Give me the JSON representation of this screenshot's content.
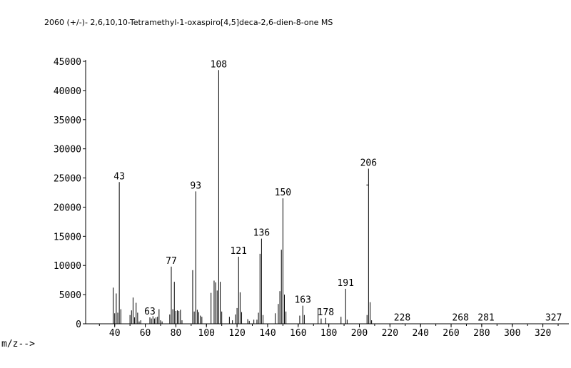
{
  "header": {
    "title": "2060 (+/-)- 2,6,10,10-Tetramethyl-1-oxaspiro[4,5]deca-2,6-dien-8-one   MS"
  },
  "chart_data": {
    "type": "bar",
    "title": "2060 (+/-)- 2,6,10,10-Tetramethyl-1-oxaspiro[4,5]deca-2,6-dien-8-one   MS",
    "xlabel": "m/z-->",
    "ylabel": "",
    "xlim": [
      21,
      337
    ],
    "ylim": [
      0,
      45000
    ],
    "x_ticks": [
      40,
      60,
      80,
      100,
      120,
      140,
      160,
      180,
      200,
      220,
      240,
      260,
      280,
      300,
      320
    ],
    "y_ticks": [
      0,
      5000,
      10000,
      15000,
      20000,
      25000,
      30000,
      35000,
      40000,
      45000
    ],
    "peak_labels": [
      {
        "mz": 43,
        "text": "43"
      },
      {
        "mz": 63,
        "text": "63"
      },
      {
        "mz": 77,
        "text": "77"
      },
      {
        "mz": 93,
        "text": "93"
      },
      {
        "mz": 108,
        "text": "108"
      },
      {
        "mz": 121,
        "text": "121"
      },
      {
        "mz": 136,
        "text": "136"
      },
      {
        "mz": 150,
        "text": "150"
      },
      {
        "mz": 163,
        "text": "163"
      },
      {
        "mz": 178,
        "text": "178"
      },
      {
        "mz": 191,
        "text": "191"
      },
      {
        "mz": 206,
        "text": "206"
      },
      {
        "mz": 228,
        "text": "228"
      },
      {
        "mz": 268,
        "text": "268"
      },
      {
        "mz": 281,
        "text": "281"
      },
      {
        "mz": 327,
        "text": "327"
      }
    ],
    "series": [
      {
        "x": [
          39,
          40,
          41,
          42,
          43,
          44,
          50,
          51,
          52,
          53,
          54,
          55,
          56,
          57,
          63,
          64,
          65,
          66,
          67,
          68,
          69,
          70,
          71,
          76,
          77,
          78,
          79,
          80,
          81,
          82,
          83,
          84,
          91,
          92,
          93,
          94,
          95,
          96,
          97,
          103,
          105,
          106,
          107,
          108,
          109,
          110,
          115,
          117,
          119,
          120,
          121,
          122,
          123,
          127,
          128,
          131,
          133,
          134,
          135,
          136,
          137,
          145,
          147,
          148,
          149,
          150,
          151,
          152,
          161,
          163,
          164,
          173,
          175,
          178,
          188,
          191,
          192,
          205,
          206,
          207,
          208,
          228,
          268,
          281,
          327
        ],
        "values": [
          6200,
          1800,
          5200,
          1900,
          24300,
          2500,
          1500,
          2300,
          4500,
          1100,
          3600,
          1900,
          400,
          600,
          1100,
          900,
          1300,
          900,
          1100,
          1200,
          2500,
          600,
          400,
          1600,
          9800,
          2500,
          7200,
          2200,
          2300,
          2200,
          2400,
          600,
          9200,
          2100,
          22700,
          2400,
          2000,
          1400,
          1200,
          5300,
          7400,
          7100,
          5700,
          43500,
          7200,
          2100,
          1200,
          600,
          1600,
          2700,
          11500,
          5400,
          2000,
          800,
          500,
          700,
          700,
          1900,
          12000,
          14600,
          1500,
          1800,
          3400,
          5600,
          12700,
          21500,
          5000,
          2100,
          1400,
          3100,
          1500,
          2700,
          900,
          1000,
          1200,
          6000,
          700,
          1500,
          26600,
          3700,
          600,
          80,
          60,
          60,
          50
        ]
      }
    ]
  }
}
